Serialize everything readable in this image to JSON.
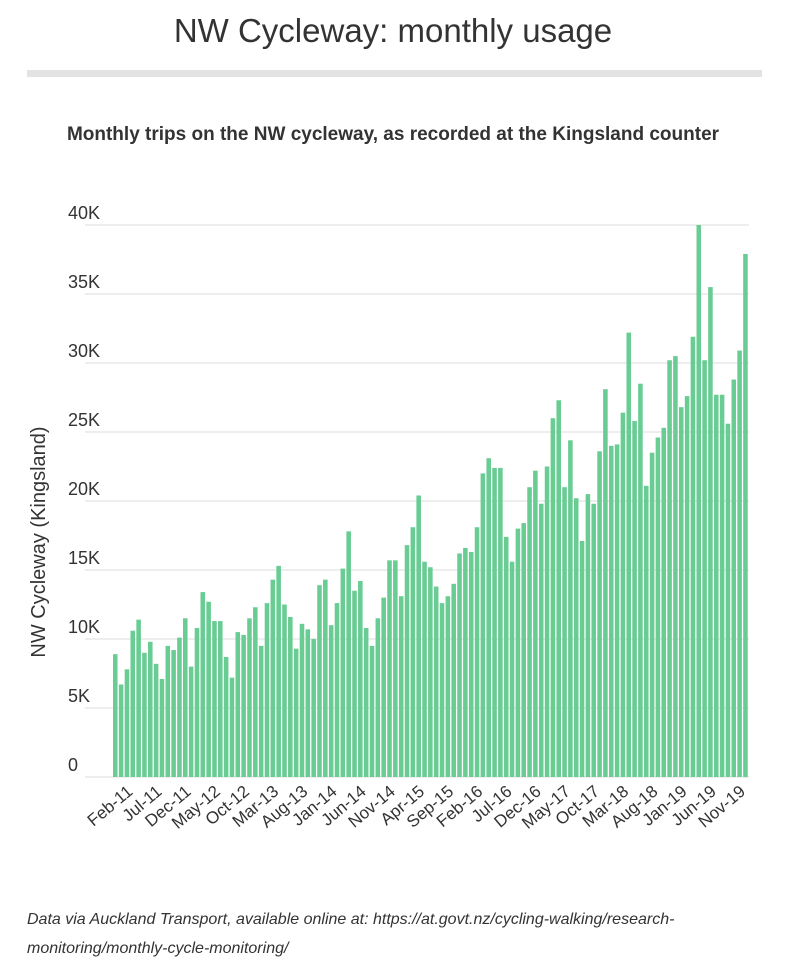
{
  "page": {
    "title": "NW Cycleway: monthly usage",
    "source_note": "Data via Auckland Transport, available online at: https://at.govt.nz/cycling-walking/research-monitoring/monthly-cycle-monitoring/"
  },
  "colors": {
    "bar": "#68cc93",
    "grid": "#dddddd",
    "text": "#333333"
  },
  "chart_data": {
    "type": "bar",
    "title": "Monthly trips on the NW cycleway, as recorded at the Kingsland counter",
    "ylabel": "NW Cycleway (Kingsland)",
    "xlabel": "",
    "ylim": [
      0,
      40000
    ],
    "y_ticks": [
      0,
      5000,
      10000,
      15000,
      20000,
      25000,
      30000,
      35000,
      40000
    ],
    "y_tick_labels": [
      "0",
      "5K",
      "10K",
      "15K",
      "20K",
      "25K",
      "30K",
      "35K",
      "40K"
    ],
    "x_tick_labels": [
      "Feb-11",
      "Jul-11",
      "Dec-11",
      "May-12",
      "Oct-12",
      "Mar-13",
      "Aug-13",
      "Jan-14",
      "Jun-14",
      "Nov-14",
      "Apr-15",
      "Sep-15",
      "Feb-16",
      "Jul-16",
      "Dec-16",
      "May-17",
      "Oct-17",
      "Mar-18",
      "Aug-18",
      "Jan-19",
      "Jun-19",
      "Nov-19"
    ],
    "x_tick_every": 5,
    "grid": true,
    "legend": "none",
    "series": [
      {
        "values": [
          8900,
          6700,
          7800,
          10600,
          11400,
          9000,
          9800,
          8200,
          7100,
          9500,
          9200,
          10100,
          11500,
          8000,
          10800,
          13400,
          12700,
          11300,
          11300,
          8700,
          7200,
          10500,
          10300,
          11500,
          12300,
          9500,
          12600,
          14300,
          15300,
          12500,
          11600,
          9300,
          11100,
          10700,
          10000,
          13900,
          14300,
          11000,
          12600,
          15100,
          17800,
          13500,
          14200,
          10800,
          9500,
          11500,
          13000,
          15700,
          15700,
          13100,
          16800,
          18100,
          20400,
          15600,
          15200,
          13800,
          12600,
          13100,
          14000,
          16200,
          16600,
          16300,
          18100,
          22000,
          23100,
          22400,
          22400,
          17400,
          15600,
          18000,
          18400,
          21000,
          22200,
          19800,
          22500,
          26000,
          27300,
          21000,
          24400,
          20200,
          17100,
          20500,
          19800,
          23600,
          28100,
          24000,
          24100,
          26400,
          32200,
          25800,
          28500,
          21100,
          23500,
          24600,
          25300,
          30200,
          30500,
          26800,
          27600,
          31900,
          40000,
          30200,
          35500,
          27700,
          27700,
          25600,
          28800,
          30900,
          37900
        ]
      }
    ]
  }
}
